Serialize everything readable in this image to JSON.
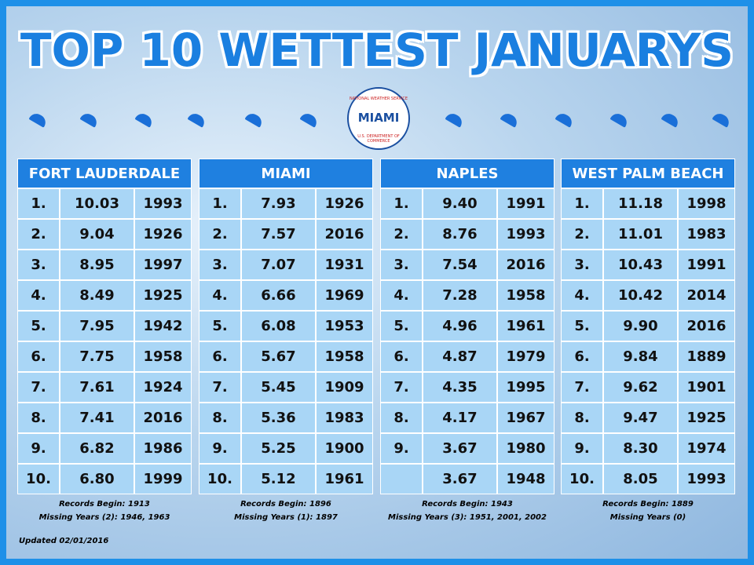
{
  "header": {
    "title": "TOP 10 WETTEST JANUARYS"
  },
  "logo": {
    "top": "NATIONAL WEATHER SERVICE",
    "center": "MIAMI",
    "bottom": "U.S. DEPARTMENT OF COMMERCE"
  },
  "tables": [
    {
      "title": "FORT LAUDERDALE",
      "rows": [
        [
          "1.",
          "10.03",
          "1993"
        ],
        [
          "2.",
          "9.04",
          "1926"
        ],
        [
          "3.",
          "8.95",
          "1997"
        ],
        [
          "4.",
          "8.49",
          "1925"
        ],
        [
          "5.",
          "7.95",
          "1942"
        ],
        [
          "6.",
          "7.75",
          "1958"
        ],
        [
          "7.",
          "7.61",
          "1924"
        ],
        [
          "8.",
          "7.41",
          "2016"
        ],
        [
          "9.",
          "6.82",
          "1986"
        ],
        [
          "10.",
          "6.80",
          "1999"
        ]
      ],
      "notes": [
        "Records Begin: 1913",
        "Missing Years (2): 1946, 1963"
      ]
    },
    {
      "title": "MIAMI",
      "rows": [
        [
          "1.",
          "7.93",
          "1926"
        ],
        [
          "2.",
          "7.57",
          "2016"
        ],
        [
          "3.",
          "7.07",
          "1931"
        ],
        [
          "4.",
          "6.66",
          "1969"
        ],
        [
          "5.",
          "6.08",
          "1953"
        ],
        [
          "6.",
          "5.67",
          "1958"
        ],
        [
          "7.",
          "5.45",
          "1909"
        ],
        [
          "8.",
          "5.36",
          "1983"
        ],
        [
          "9.",
          "5.25",
          "1900"
        ],
        [
          "10.",
          "5.12",
          "1961"
        ]
      ],
      "notes": [
        "Records Begin: 1896",
        "Missing Years (1): 1897"
      ]
    },
    {
      "title": "NAPLES",
      "rows": [
        [
          "1.",
          "9.40",
          "1991"
        ],
        [
          "2.",
          "8.76",
          "1993"
        ],
        [
          "3.",
          "7.54",
          "2016"
        ],
        [
          "4.",
          "7.28",
          "1958"
        ],
        [
          "5.",
          "4.96",
          "1961"
        ],
        [
          "6.",
          "4.87",
          "1979"
        ],
        [
          "7.",
          "4.35",
          "1995"
        ],
        [
          "8.",
          "4.17",
          "1967"
        ],
        [
          "9.",
          "3.67",
          "1980"
        ],
        [
          null,
          "3.67",
          "1948"
        ]
      ],
      "notes": [
        "Records Begin: 1943",
        "Missing Years (3): 1951, 2001, 2002"
      ]
    },
    {
      "title": "WEST PALM BEACH",
      "rows": [
        [
          "1.",
          "11.18",
          "1998"
        ],
        [
          "2.",
          "11.01",
          "1983"
        ],
        [
          "3.",
          "10.43",
          "1991"
        ],
        [
          "4.",
          "10.42",
          "2014"
        ],
        [
          "5.",
          "9.90",
          "2016"
        ],
        [
          "6.",
          "9.84",
          "1889"
        ],
        [
          "7.",
          "9.62",
          "1901"
        ],
        [
          "8.",
          "9.47",
          "1925"
        ],
        [
          "9.",
          "8.30",
          "1974"
        ],
        [
          "10.",
          "8.05",
          "1993"
        ]
      ],
      "notes": [
        "Records Begin: 1889",
        "Missing Years (0)"
      ]
    }
  ],
  "footer": {
    "updated": "Updated 02/01/2016"
  }
}
